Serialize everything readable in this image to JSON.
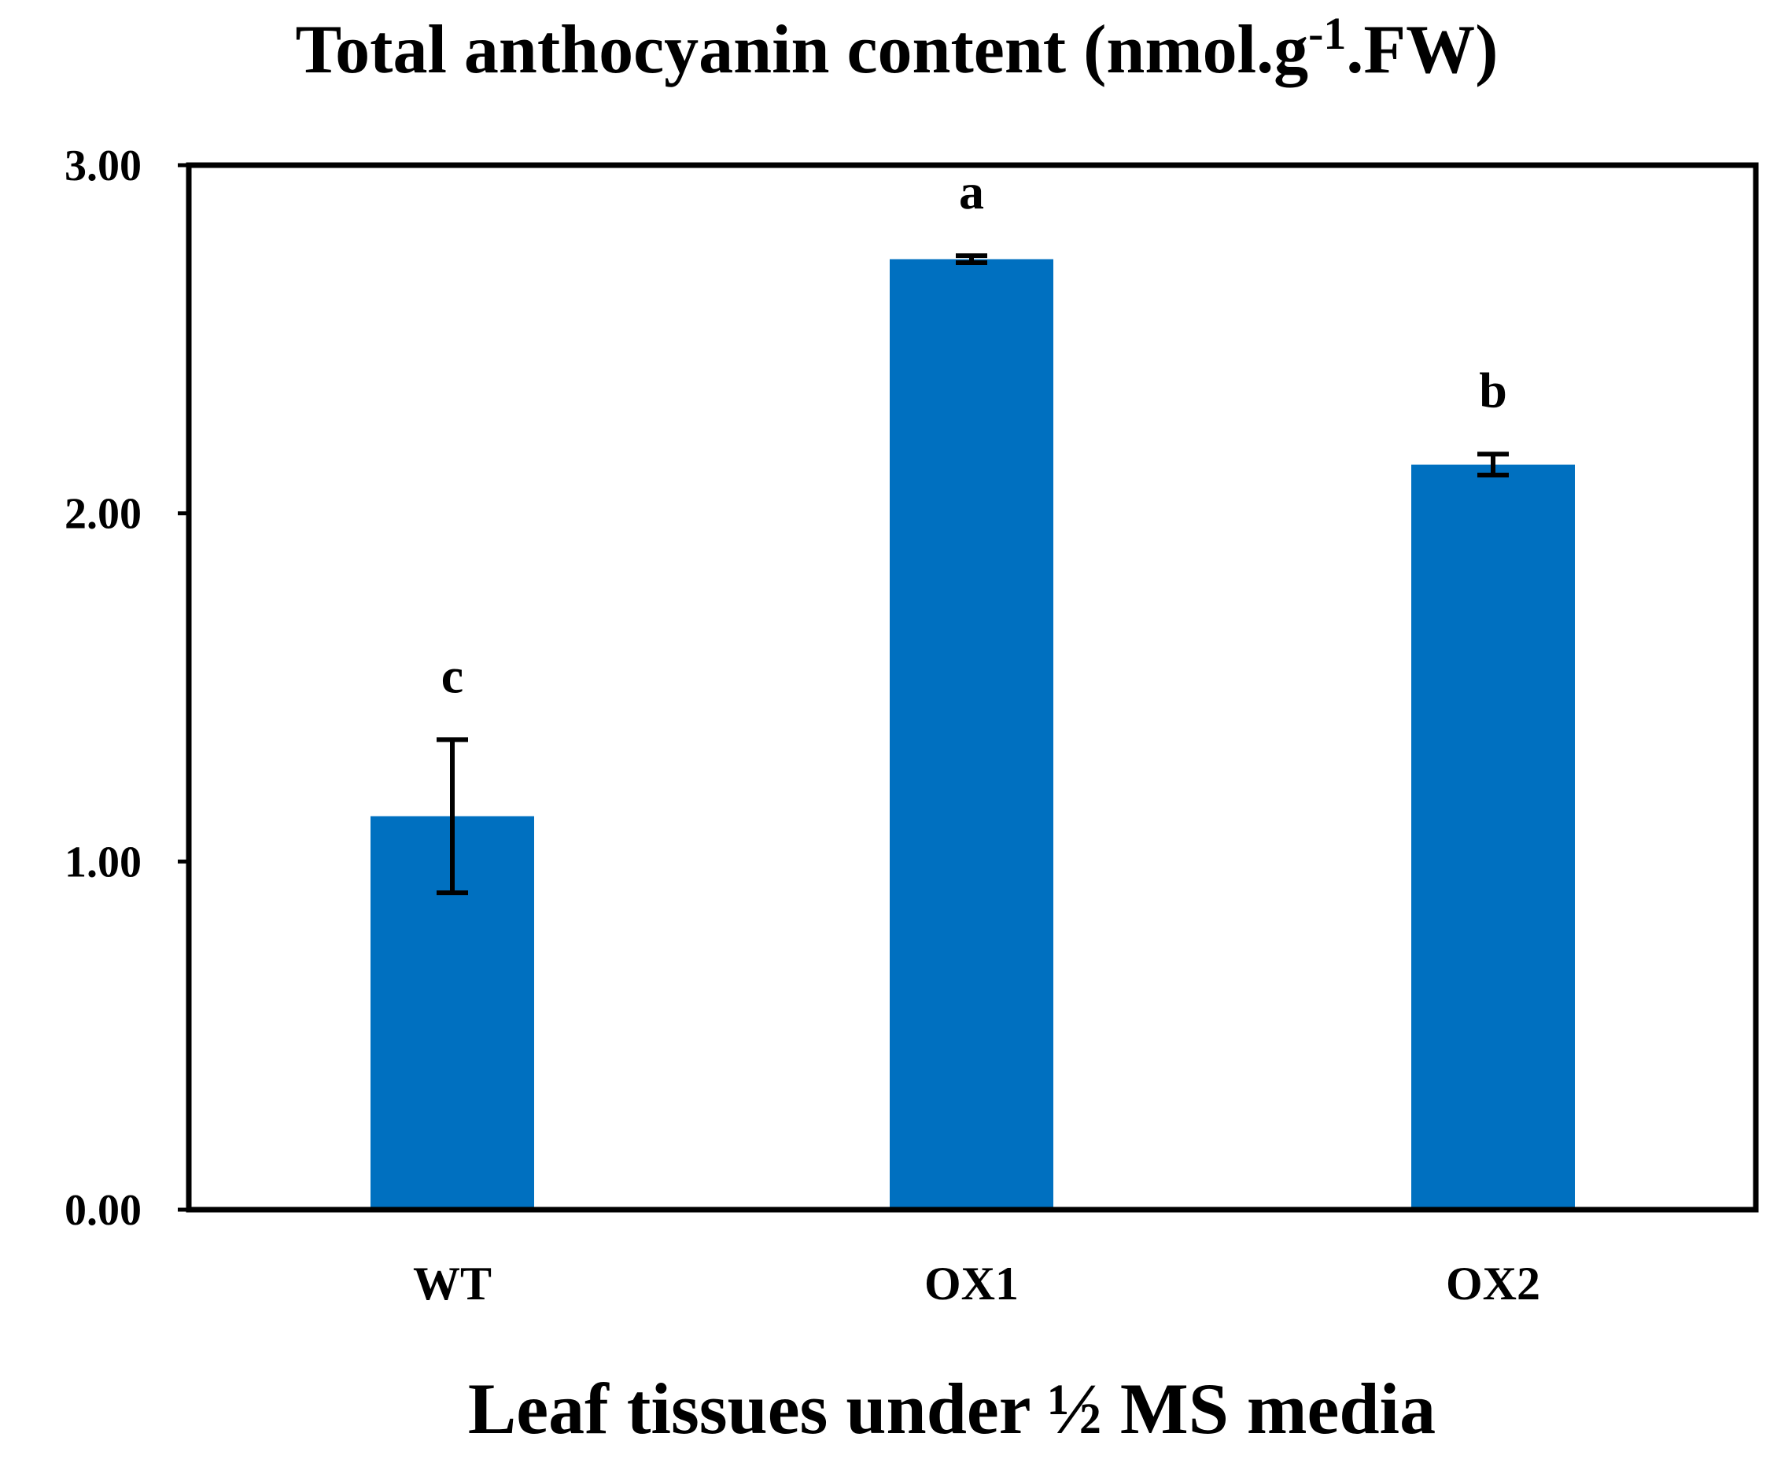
{
  "chart_data": {
    "type": "bar",
    "title_main": "Total anthocyanin content (nmol.g",
    "title_sup": "-1",
    "title_end": ".FW)",
    "xlabel": "Leaf tissues under ½ MS media",
    "ylabel": "",
    "categories": [
      "WT",
      "OX1",
      "OX2"
    ],
    "values": [
      1.13,
      2.73,
      2.14
    ],
    "error": [
      0.22,
      0.01,
      0.03
    ],
    "significance": [
      "c",
      "a",
      "b"
    ],
    "ylim": [
      0,
      3
    ],
    "yticks": [
      "0.00",
      "1.00",
      "2.00",
      "3.00"
    ],
    "grid": false,
    "legend": "none",
    "bar_color": "#0070C0"
  }
}
